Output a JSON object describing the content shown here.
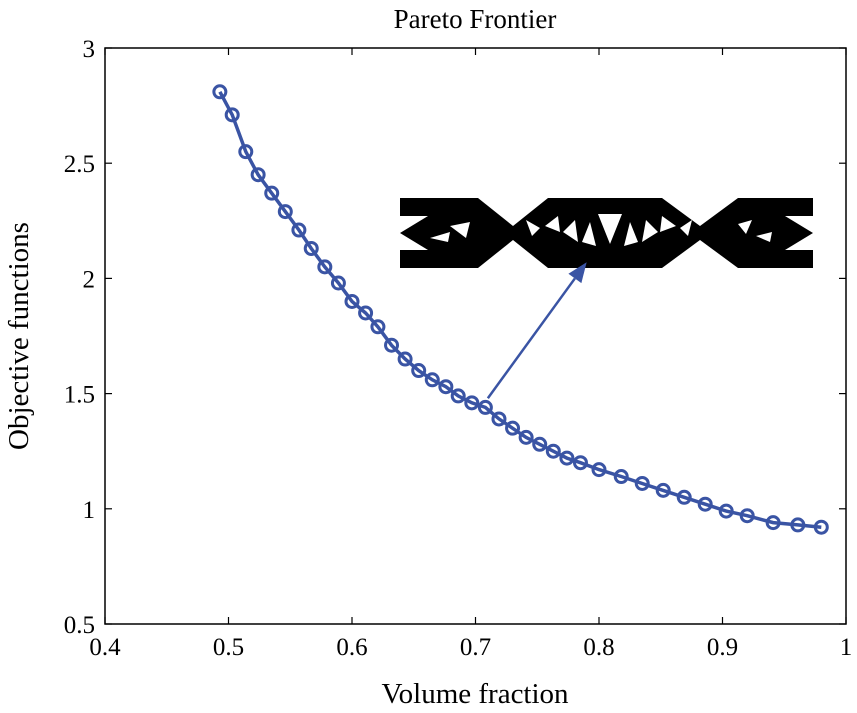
{
  "chart_data": {
    "type": "line",
    "title": "Pareto Frontier",
    "xlabel": "Volume fraction",
    "ylabel": "Objective functions",
    "xlim": [
      0.4,
      1
    ],
    "ylim": [
      0.5,
      3
    ],
    "xticks": [
      0.4,
      0.5,
      0.6,
      0.7,
      0.8,
      0.9,
      1
    ],
    "yticks": [
      0.5,
      1,
      1.5,
      2,
      2.5,
      3
    ],
    "xtick_labels": [
      "0.4",
      "0.5",
      "0.6",
      "0.7",
      "0.8",
      "0.9",
      "1"
    ],
    "ytick_labels": [
      "0.5",
      "1",
      "1.5",
      "2",
      "2.5",
      "3"
    ],
    "grid": false,
    "marker": "circle",
    "line_color": "#3a54a4",
    "inset": "black-and-white beam topology image",
    "annotation_arrow": {
      "from": [
        0.71,
        1.48
      ],
      "to": [
        0.79,
        2.07
      ]
    },
    "series": [
      {
        "x": [
          0.493,
          0.503,
          0.514,
          0.524,
          0.535,
          0.546,
          0.557,
          0.567,
          0.578,
          0.589,
          0.6,
          0.611,
          0.621,
          0.632,
          0.643,
          0.654,
          0.665,
          0.676,
          0.686,
          0.697,
          0.708,
          0.719,
          0.73,
          0.741,
          0.752,
          0.763,
          0.774,
          0.785,
          0.8,
          0.818,
          0.835,
          0.852,
          0.869,
          0.886,
          0.903,
          0.92,
          0.941,
          0.961,
          0.98
        ],
        "y": [
          2.81,
          2.71,
          2.55,
          2.45,
          2.37,
          2.29,
          2.21,
          2.13,
          2.05,
          1.98,
          1.9,
          1.85,
          1.79,
          1.71,
          1.65,
          1.6,
          1.56,
          1.53,
          1.49,
          1.46,
          1.44,
          1.39,
          1.35,
          1.31,
          1.28,
          1.25,
          1.22,
          1.2,
          1.17,
          1.14,
          1.11,
          1.08,
          1.05,
          1.02,
          0.99,
          0.97,
          0.94,
          0.93,
          0.92
        ]
      }
    ]
  }
}
